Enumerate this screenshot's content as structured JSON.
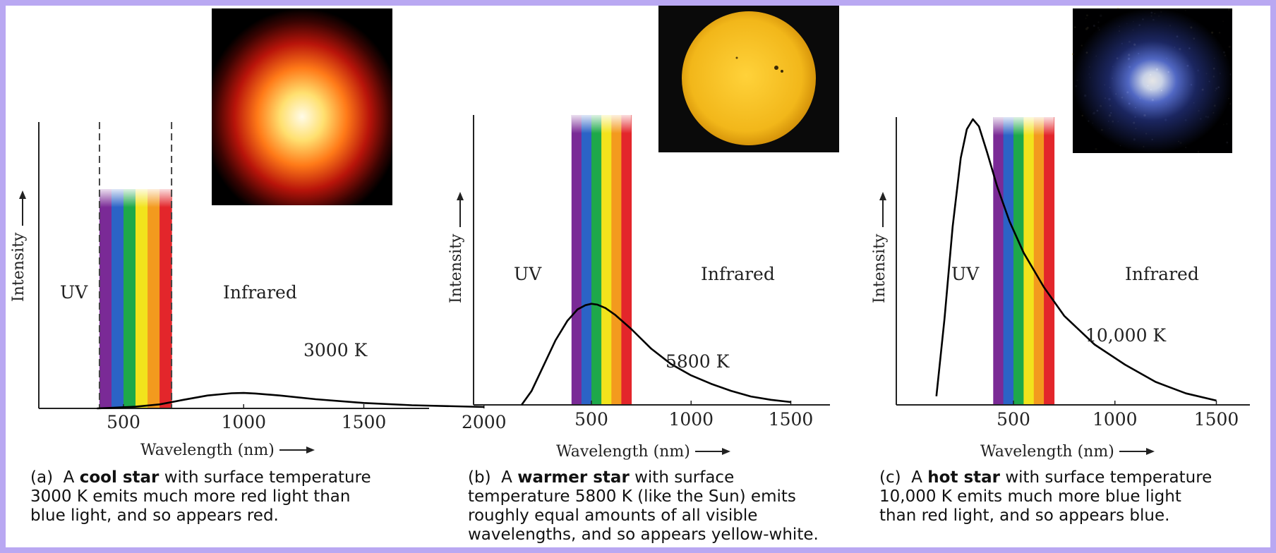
{
  "colors": {
    "frame": "#b9a8f2",
    "curve": "#000000",
    "spectrum": [
      "#7a2a96",
      "#2b63c6",
      "#1ea84a",
      "#f2e31c",
      "#f39a1e",
      "#e3262b"
    ]
  },
  "chart_data": [
    {
      "type": "line",
      "title": "",
      "xlabel": "Wavelength (nm)",
      "ylabel": "Intensity",
      "xticks": [
        "500",
        "1000",
        "1500",
        "2000"
      ],
      "xlim": [
        300,
        2100
      ],
      "ylim": [
        0,
        1
      ],
      "region_labels": {
        "uv": "UV",
        "ir": "Infrared"
      },
      "series": [
        {
          "name": "3000 K",
          "x": [
            390,
            450,
            550,
            650,
            750,
            850,
            950,
            1000,
            1050,
            1150,
            1300,
            1500,
            1700,
            2000
          ],
          "y": [
            0.0,
            0.002,
            0.006,
            0.014,
            0.03,
            0.045,
            0.053,
            0.054,
            0.052,
            0.045,
            0.032,
            0.019,
            0.011,
            0.005
          ]
        }
      ],
      "visible_band_nm": [
        400,
        700
      ],
      "dashed_band_edges": true,
      "inset": "red-star-image",
      "caption": {
        "tag": "(a)",
        "pre": "A",
        "bold": "cool star",
        "post": "with surface temperature",
        "line2": "3000 K emits much more red light than",
        "line3": "blue light, and so appears red."
      }
    },
    {
      "type": "line",
      "title": "",
      "xlabel": "Wavelength (nm)",
      "ylabel": "Intensity",
      "xticks": [
        "500",
        "1000",
        "1500"
      ],
      "xlim": [
        50,
        1550
      ],
      "ylim": [
        0,
        1
      ],
      "region_labels": {
        "uv": "UV",
        "ir": "Infrared"
      },
      "series": [
        {
          "name": "5800 K",
          "x": [
            150,
            200,
            260,
            320,
            380,
            430,
            470,
            500,
            530,
            570,
            620,
            700,
            800,
            900,
            1000,
            1100,
            1200,
            1300,
            1400,
            1500
          ],
          "y": [
            0.0,
            0.05,
            0.14,
            0.23,
            0.3,
            0.34,
            0.355,
            0.36,
            0.357,
            0.345,
            0.32,
            0.27,
            0.2,
            0.145,
            0.105,
            0.075,
            0.05,
            0.03,
            0.018,
            0.01
          ]
        }
      ],
      "visible_band_nm": [
        400,
        700
      ],
      "dashed_band_edges": false,
      "inset": "sun-image",
      "caption": {
        "tag": "(b)",
        "pre": "A",
        "bold": "warmer star",
        "post": "with surface",
        "line2": "temperature 5800 K (like the Sun) emits",
        "line3": "roughly equal amounts of all visible",
        "line4": "wavelengths, and so appears yellow-white."
      }
    },
    {
      "type": "line",
      "title": "",
      "xlabel": "Wavelength (nm)",
      "ylabel": "Intensity",
      "xticks": [
        "500",
        "1000",
        "1500"
      ],
      "xlim": [
        50,
        1550
      ],
      "ylim": [
        0,
        1
      ],
      "region_labels": {
        "uv": "UV",
        "ir": "Infrared"
      },
      "series": [
        {
          "name": "10,000 K",
          "x": [
            120,
            160,
            200,
            240,
            270,
            300,
            330,
            370,
            420,
            480,
            550,
            650,
            750,
            900,
            1050,
            1200,
            1350,
            1500
          ],
          "y": [
            0.03,
            0.3,
            0.62,
            0.86,
            0.96,
            0.995,
            0.97,
            0.88,
            0.76,
            0.64,
            0.53,
            0.41,
            0.31,
            0.21,
            0.14,
            0.08,
            0.04,
            0.015
          ]
        }
      ],
      "visible_band_nm": [
        400,
        700
      ],
      "dashed_band_edges": false,
      "inset": "blue-star-image",
      "caption": {
        "tag": "(c)",
        "pre": "A",
        "bold": "hot star",
        "post": "with surface temperature",
        "line2": "10,000 K emits much more blue light",
        "line3": "than red light, and so appears blue."
      }
    }
  ]
}
